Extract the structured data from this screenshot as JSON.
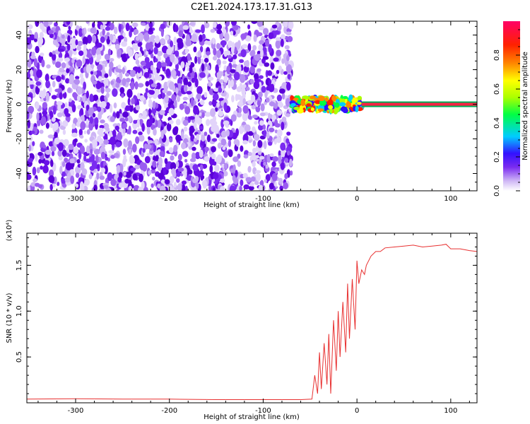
{
  "title": "C2E1.2024.173.17.31.G13",
  "chart_data": [
    {
      "type": "heatmap",
      "xlabel": "Height of straight line (km)",
      "ylabel": "Frequency (Hz)",
      "xlim": [
        -352,
        128
      ],
      "ylim": [
        -50,
        48
      ],
      "xticks": [
        -300,
        -200,
        -100,
        0,
        100
      ],
      "xtick_labels": [
        "-300",
        "-200",
        "-100",
        "0",
        "100"
      ],
      "yticks": [
        -40,
        -20,
        0,
        20,
        40
      ],
      "ytick_labels": [
        "-40",
        "-20",
        "0",
        "20",
        "40"
      ],
      "noise_region_x": [
        -352,
        -70
      ],
      "signal_region_x": [
        -70,
        5
      ],
      "carrier_line_x": [
        5,
        128
      ],
      "carrier_frequency": 0,
      "colorbar": {
        "label": "Normalized spectral amplitude",
        "range": [
          0,
          1
        ],
        "ticks": [
          0.0,
          0.2,
          0.4,
          0.6,
          0.8
        ],
        "tick_labels": [
          "0.0",
          "0.2",
          "0.4",
          "0.6",
          "0.8"
        ],
        "colors": [
          "#ffffff",
          "#cdb4f5",
          "#7a2bf0",
          "#3311ff",
          "#00ccff",
          "#00ff44",
          "#aaff00",
          "#ffff00",
          "#ff8800",
          "#ff2200",
          "#ff0066"
        ]
      }
    },
    {
      "type": "line",
      "xlabel": "Height of straight line (km)",
      "ylabel": "SNR (10 * v/v)",
      "scale_note": "(x10⁴)",
      "xlim": [
        -352,
        128
      ],
      "ylim": [
        0,
        1.85
      ],
      "xticks": [
        -300,
        -200,
        -100,
        0,
        100
      ],
      "xtick_labels": [
        "-300",
        "-200",
        "-100",
        "0",
        "100"
      ],
      "yticks": [
        0.5,
        1.0,
        1.5
      ],
      "ytick_labels": [
        "0.5",
        "1.0",
        "1.5"
      ],
      "color": "#e83030",
      "series": [
        {
          "x": [
            -352,
            -300,
            -250,
            -200,
            -150,
            -100,
            -60,
            -48,
            -45,
            -42,
            -40,
            -38,
            -35,
            -32,
            -30,
            -28,
            -25,
            -22,
            -20,
            -18,
            -15,
            -12,
            -10,
            -8,
            -5,
            -2,
            0,
            2,
            5,
            8,
            10,
            15,
            20,
            25,
            30,
            40,
            50,
            60,
            70,
            80,
            90,
            95,
            100,
            110,
            120,
            128
          ],
          "y": [
            0.04,
            0.045,
            0.04,
            0.04,
            0.035,
            0.035,
            0.035,
            0.04,
            0.3,
            0.1,
            0.55,
            0.15,
            0.65,
            0.2,
            0.75,
            0.1,
            0.9,
            0.35,
            1.0,
            0.5,
            1.1,
            0.55,
            1.3,
            0.7,
            1.35,
            0.8,
            1.55,
            1.3,
            1.45,
            1.4,
            1.5,
            1.6,
            1.65,
            1.65,
            1.69,
            1.7,
            1.71,
            1.72,
            1.7,
            1.71,
            1.72,
            1.73,
            1.68,
            1.68,
            1.66,
            1.65
          ]
        }
      ]
    }
  ]
}
